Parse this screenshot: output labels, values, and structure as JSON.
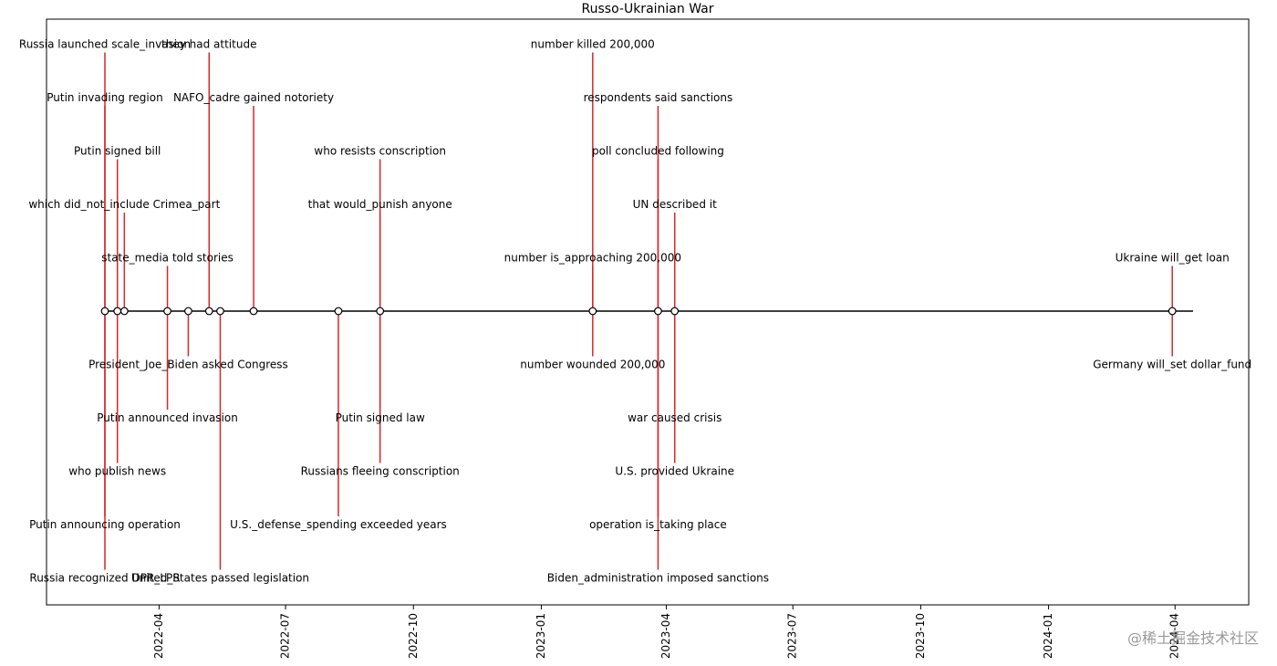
{
  "chart_data": {
    "type": "timeline",
    "title": "Russo-Ukrainian War",
    "x_axis_ticks": [
      "2022-04",
      "2022-07",
      "2022-10",
      "2023-01",
      "2023-04",
      "2023-07",
      "2023-10",
      "2024-01",
      "2024-04"
    ],
    "xlim": [
      "2022-01-10",
      "2024-05-24"
    ],
    "events": [
      {
        "date": "2022-02-21",
        "level": 5,
        "label": "Russia launched scale_invasion"
      },
      {
        "date": "2022-02-21",
        "level": 4,
        "label": "Putin invading region"
      },
      {
        "date": "2022-02-21",
        "level": -4,
        "label": "Putin announcing operation"
      },
      {
        "date": "2022-02-21",
        "level": -5,
        "label": "Russia recognized DPR_LPR"
      },
      {
        "date": "2022-03-02",
        "level": 3,
        "label": "Putin signed bill"
      },
      {
        "date": "2022-03-02",
        "level": -3,
        "label": "who publish news"
      },
      {
        "date": "2022-03-07",
        "level": 2,
        "label": "which did_not_include Crimea_part"
      },
      {
        "date": "2022-04-07",
        "level": 1,
        "label": "state_media told stories"
      },
      {
        "date": "2022-04-07",
        "level": -2,
        "label": "Putin announced invasion"
      },
      {
        "date": "2022-04-22",
        "level": -1,
        "label": "President_Joe_Biden asked Congress"
      },
      {
        "date": "2022-05-07",
        "level": 5,
        "label": "they had attitude"
      },
      {
        "date": "2022-05-15",
        "level": -5,
        "label": "United_States passed legislation"
      },
      {
        "date": "2022-06-08",
        "level": 4,
        "label": "NAFO_cadre gained notoriety"
      },
      {
        "date": "2022-08-08",
        "level": -4,
        "label": "U.S._defense_spending exceeded years"
      },
      {
        "date": "2022-09-07",
        "level": 3,
        "label": "who resists conscription"
      },
      {
        "date": "2022-09-07",
        "level": 2,
        "label": "that would_punish anyone"
      },
      {
        "date": "2022-09-07",
        "level": -2,
        "label": "Putin signed law"
      },
      {
        "date": "2022-09-07",
        "level": -3,
        "label": "Russians fleeing conscription"
      },
      {
        "date": "2023-02-07",
        "level": 5,
        "label": "number killed 200,000"
      },
      {
        "date": "2023-02-07",
        "level": 1,
        "label": "number is_approaching 200,000"
      },
      {
        "date": "2023-02-07",
        "level": -1,
        "label": "number wounded 200,000"
      },
      {
        "date": "2023-03-26",
        "level": 4,
        "label": "respondents said sanctions"
      },
      {
        "date": "2023-03-26",
        "level": 3,
        "label": "poll concluded following"
      },
      {
        "date": "2023-03-26",
        "level": -4,
        "label": "operation is_taking place"
      },
      {
        "date": "2023-03-26",
        "level": -5,
        "label": "Biden_administration imposed sanctions"
      },
      {
        "date": "2023-04-07",
        "level": 2,
        "label": "UN described it"
      },
      {
        "date": "2023-04-07",
        "level": -2,
        "label": "war caused crisis"
      },
      {
        "date": "2023-04-07",
        "level": -3,
        "label": "U.S. provided Ukraine"
      },
      {
        "date": "2024-03-30",
        "level": 1,
        "label": "Ukraine will_get loan"
      },
      {
        "date": "2024-03-30",
        "level": -1,
        "label": "Germany will_set dollar_fund"
      }
    ]
  },
  "watermark": "@稀土掘金技术社区"
}
